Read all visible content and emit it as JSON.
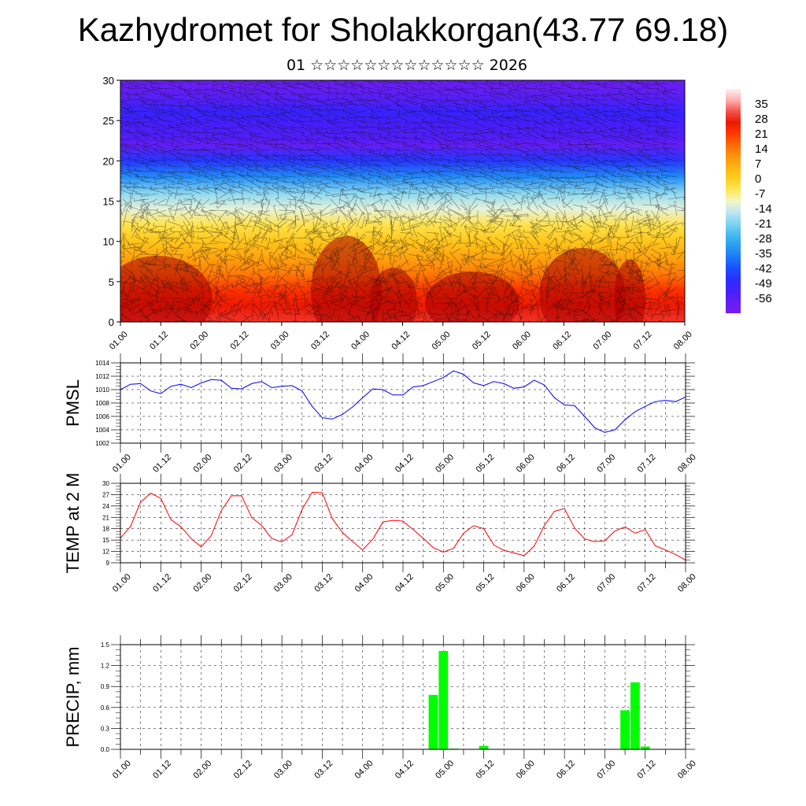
{
  "title": "Kazhydromet for Sholakkorgan(43.77 69.18)",
  "subtitle": "01 ☆☆☆☆☆☆☆☆☆☆☆☆☆ 2026",
  "colors": {
    "pmsl_line": "#0000ff",
    "temp_line": "#ff0000",
    "precip_bar": "#00ff00",
    "grid": "#000000"
  },
  "chart_data": [
    {
      "name": "cross-section",
      "type": "heatmap",
      "ylim": [
        0,
        30
      ],
      "yticks": [
        "0",
        "5",
        "10",
        "15",
        "20",
        "25",
        "30"
      ],
      "xticks": [
        "01.00",
        "01.12",
        "02.00",
        "02.12",
        "03.00",
        "03.12",
        "04.00",
        "04.12",
        "05.00",
        "05.12",
        "06.00",
        "06.12",
        "07.00",
        "07.12",
        "08.00"
      ],
      "colorbar_labels": [
        "35",
        "28",
        "21",
        "14",
        "7",
        "0",
        "-7",
        "-14",
        "-21",
        "-28",
        "-35",
        "-42",
        "-49",
        "-56"
      ],
      "colorbar_range": [
        -63,
        42
      ],
      "temp_profile": [
        [
          0,
          30
        ],
        [
          2,
          26
        ],
        [
          4,
          22
        ],
        [
          6,
          14
        ],
        [
          8,
          8
        ],
        [
          10,
          2
        ],
        [
          12,
          -4
        ],
        [
          14,
          -12
        ],
        [
          16,
          -20
        ],
        [
          18,
          -34
        ],
        [
          20,
          -46
        ],
        [
          22,
          -58
        ],
        [
          24,
          -54
        ],
        [
          26,
          -50
        ],
        [
          28,
          -56
        ],
        [
          30,
          -60
        ]
      ]
    },
    {
      "name": "pmsl",
      "type": "line",
      "ylabel": "PMSL",
      "ylim": [
        1002,
        1014
      ],
      "yticks": [
        "1002",
        "1004",
        "1006",
        "1008",
        "1010",
        "1012",
        "1014"
      ],
      "xticks": [
        "01.00",
        "01.12",
        "02.00",
        "02.12",
        "03.00",
        "03.12",
        "04.00",
        "04.12",
        "05.00",
        "05.12",
        "06.00",
        "06.12",
        "07.00",
        "07.12",
        "08.00"
      ],
      "x": [
        0.0,
        0.25,
        0.5,
        0.75,
        1.0,
        1.25,
        1.5,
        1.75,
        2.0,
        2.25,
        2.5,
        2.75,
        3.0,
        3.25,
        3.5,
        3.75,
        4.0,
        4.25,
        4.5,
        4.75,
        5.0,
        5.25,
        5.5,
        5.75,
        6.0,
        6.25,
        6.5,
        6.75,
        7.0,
        7.25,
        7.5,
        7.75,
        8.0,
        8.25,
        8.5,
        8.75,
        9.0,
        9.25,
        9.5,
        9.75,
        10.0,
        10.25,
        10.5,
        10.75,
        11.0,
        11.25,
        11.5,
        11.75,
        12.0,
        12.25,
        12.5,
        12.75,
        13.0,
        13.25,
        13.5,
        13.75,
        14.0
      ],
      "values": [
        1010.0,
        1010.8,
        1010.9,
        1009.8,
        1009.4,
        1010.5,
        1010.8,
        1010.3,
        1011.0,
        1011.5,
        1011.4,
        1010.2,
        1010.1,
        1010.9,
        1011.2,
        1010.3,
        1010.5,
        1010.6,
        1009.8,
        1007.5,
        1005.8,
        1005.6,
        1006.3,
        1007.4,
        1008.8,
        1010.1,
        1010.0,
        1009.2,
        1009.2,
        1010.4,
        1010.6,
        1011.2,
        1011.8,
        1012.8,
        1012.3,
        1011.0,
        1010.6,
        1011.2,
        1010.9,
        1010.2,
        1010.4,
        1011.4,
        1010.7,
        1008.8,
        1007.7,
        1007.6,
        1006.0,
        1004.3,
        1003.6,
        1004.0,
        1005.5,
        1006.7,
        1007.5,
        1008.2,
        1008.4,
        1008.2,
        1008.9
      ]
    },
    {
      "name": "temp",
      "type": "line",
      "ylabel": "TEMP at 2 M",
      "ylim": [
        9,
        30
      ],
      "yticks": [
        "9",
        "12",
        "15",
        "18",
        "21",
        "24",
        "27",
        "30"
      ],
      "xticks": [
        "01.00",
        "01.12",
        "02.00",
        "02.12",
        "03.00",
        "03.12",
        "04.00",
        "04.12",
        "05.00",
        "05.12",
        "06.00",
        "06.12",
        "07.00",
        "07.12",
        "08.00"
      ],
      "x": [
        0.0,
        0.25,
        0.5,
        0.75,
        1.0,
        1.25,
        1.5,
        1.75,
        2.0,
        2.25,
        2.5,
        2.75,
        3.0,
        3.25,
        3.5,
        3.75,
        4.0,
        4.25,
        4.5,
        4.75,
        5.0,
        5.25,
        5.5,
        5.75,
        6.0,
        6.25,
        6.5,
        6.75,
        7.0,
        7.25,
        7.5,
        7.75,
        8.0,
        8.25,
        8.5,
        8.75,
        9.0,
        9.25,
        9.5,
        9.75,
        10.0,
        10.25,
        10.5,
        10.75,
        11.0,
        11.25,
        11.5,
        11.75,
        12.0,
        12.25,
        12.5,
        12.75,
        13.0,
        13.25,
        13.5,
        13.75,
        14.0
      ],
      "values": [
        15.5,
        18.6,
        25.0,
        27.4,
        26.0,
        20.4,
        18.5,
        15.4,
        13.2,
        16.2,
        22.8,
        26.7,
        26.7,
        21.0,
        18.8,
        15.4,
        14.5,
        16.4,
        23.1,
        27.6,
        27.5,
        20.6,
        17.0,
        14.6,
        12.4,
        15.2,
        19.8,
        20.2,
        20.0,
        17.8,
        15.5,
        13.0,
        11.8,
        12.8,
        16.8,
        18.8,
        18.0,
        13.7,
        12.3,
        11.6,
        10.9,
        13.4,
        18.8,
        22.6,
        23.3,
        18.2,
        15.3,
        14.6,
        14.8,
        17.4,
        18.5,
        16.8,
        17.8,
        13.5,
        12.4,
        11.2,
        9.7
      ]
    },
    {
      "name": "precip",
      "type": "bar",
      "ylabel": "PRECIP, mm",
      "ylim": [
        0,
        1.5
      ],
      "yticks": [
        "0.0",
        "0.3",
        "0.6",
        "0.9",
        "1.2",
        "1.5"
      ],
      "xticks": [
        "01.00",
        "01.12",
        "02.00",
        "02.12",
        "03.00",
        "03.12",
        "04.00",
        "04.12",
        "05.00",
        "05.12",
        "06.00",
        "06.12",
        "07.00",
        "07.12",
        "08.00"
      ],
      "x": [
        7.75,
        8.0,
        8.25,
        9.0,
        12.5,
        12.75,
        13.0
      ],
      "values": [
        0.78,
        1.41,
        0.01,
        0.05,
        0.56,
        0.96,
        0.04
      ]
    }
  ]
}
